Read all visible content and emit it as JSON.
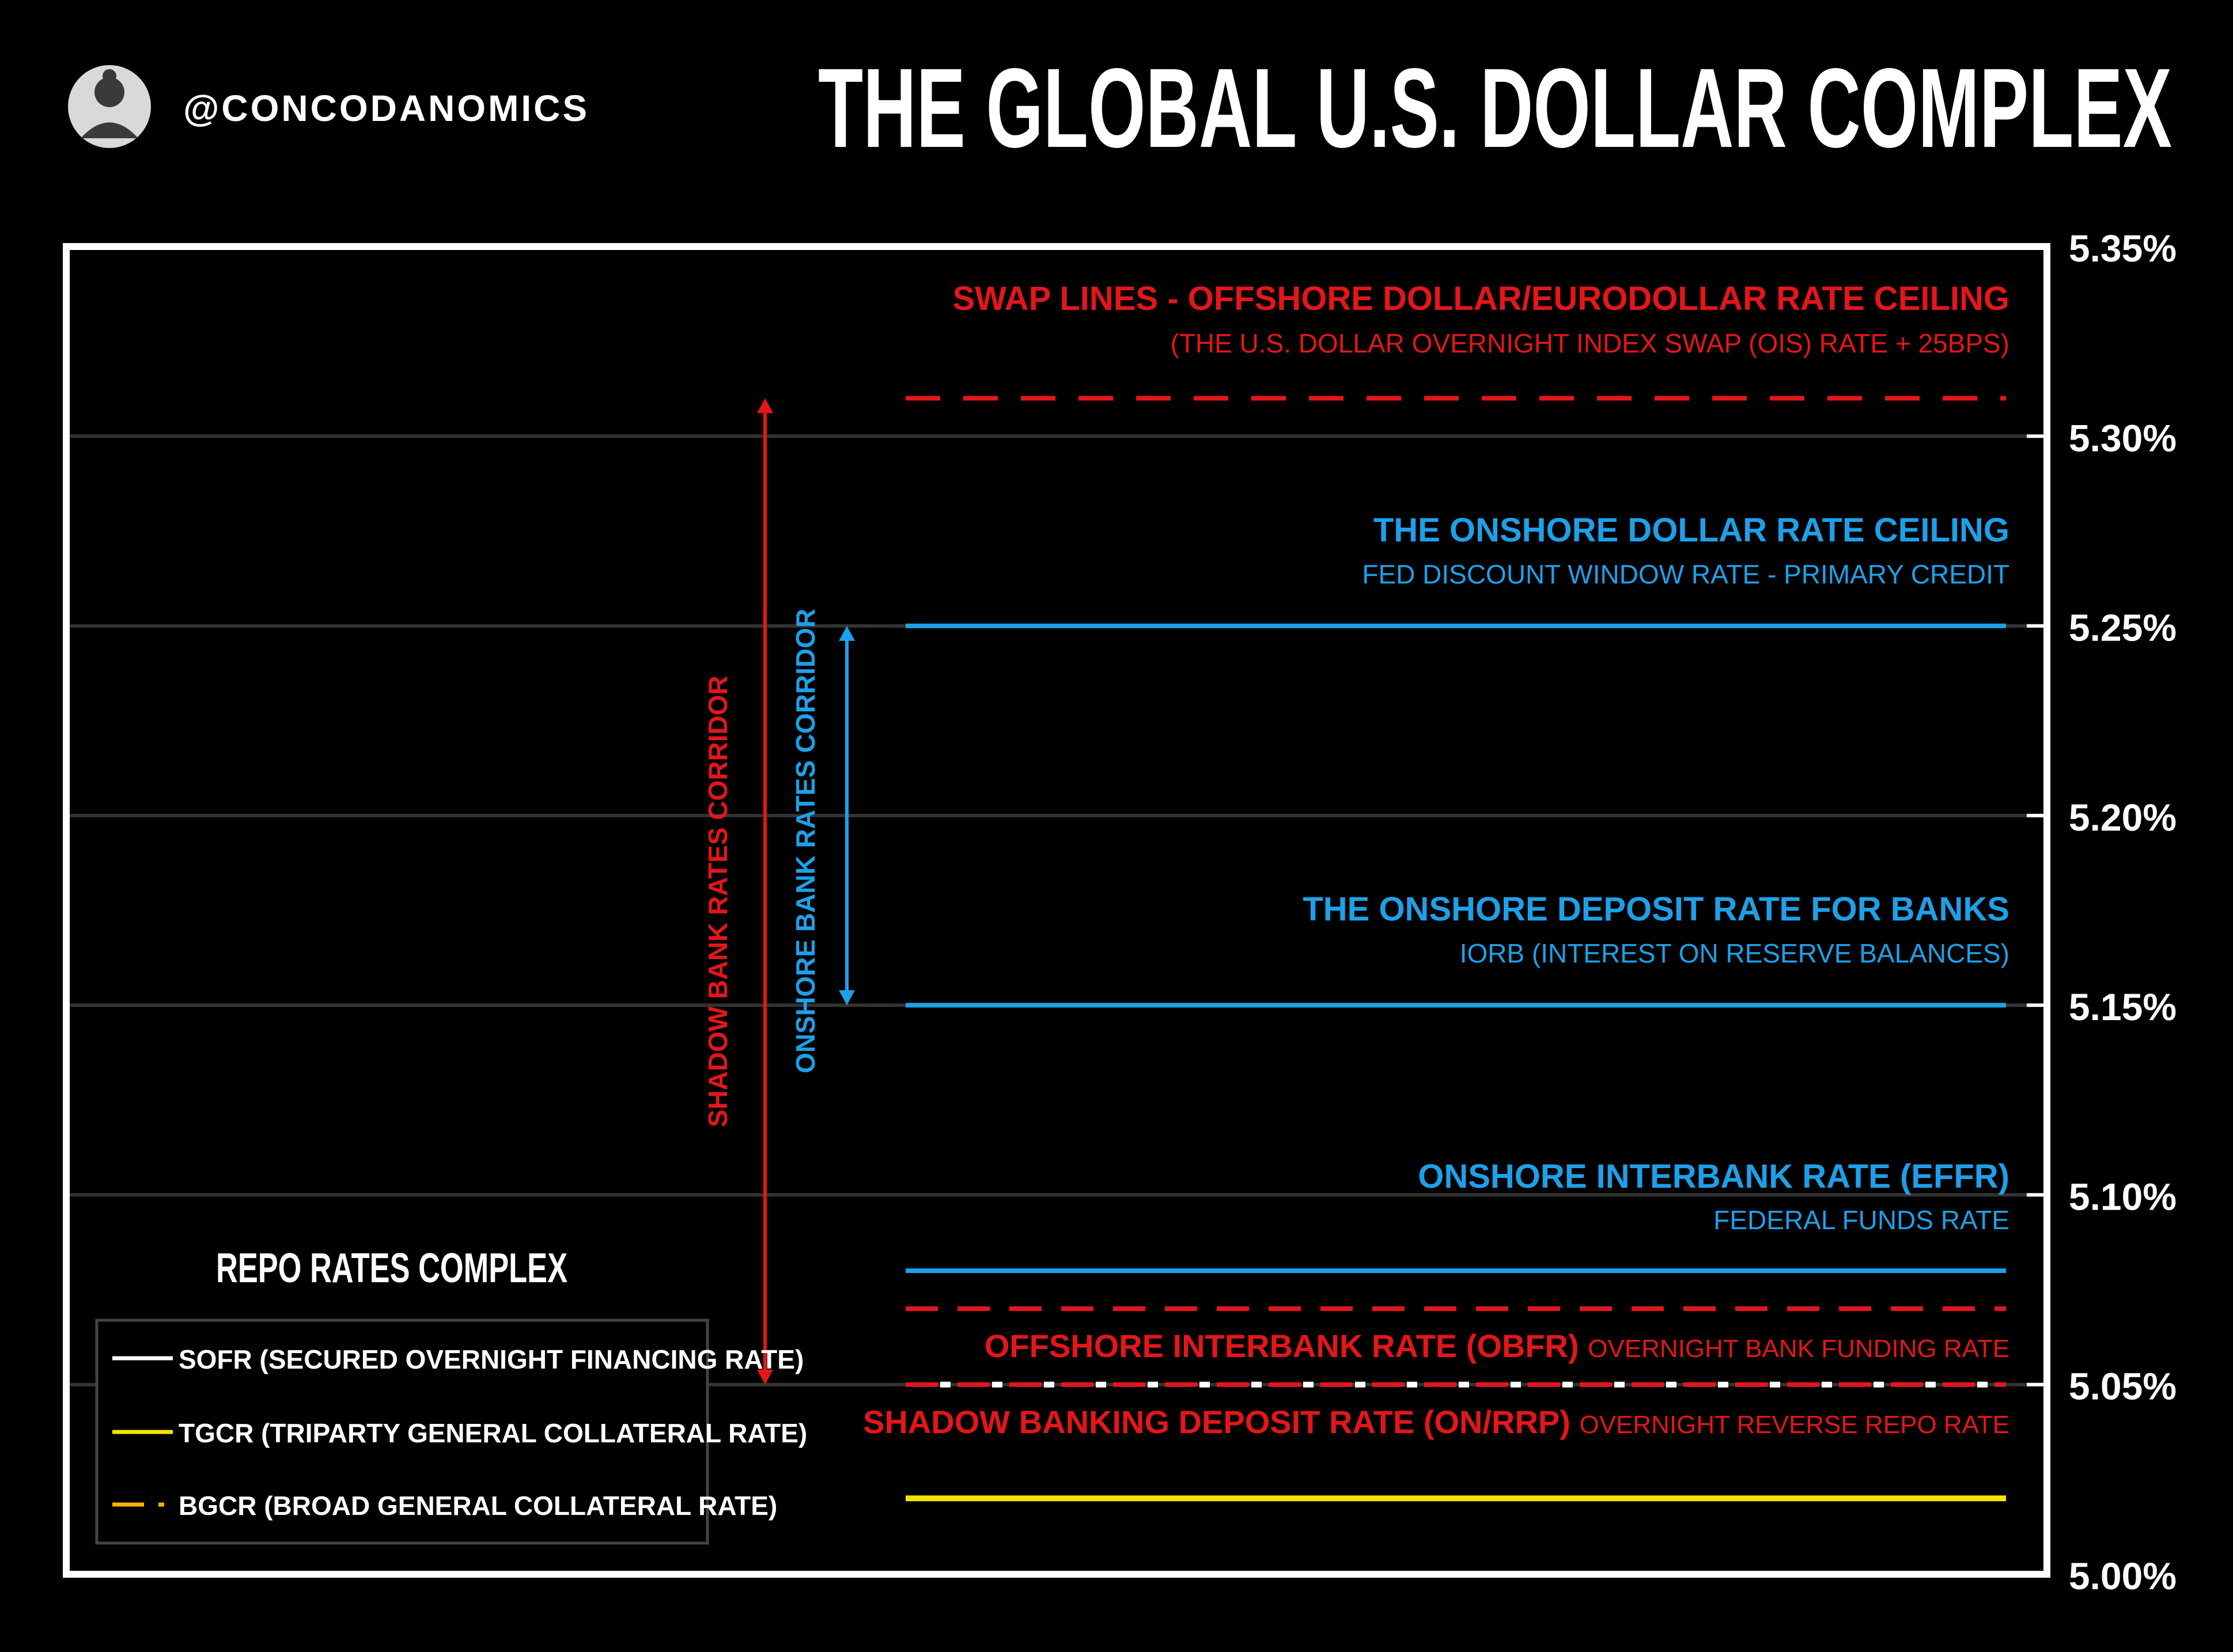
{
  "header": {
    "handle": "@CONCODANOMICS",
    "title": "THE GLOBAL U.S. DOLLAR COMPLEX",
    "avatar_icon": "person-avatar-icon"
  },
  "colors": {
    "background": "#000000",
    "frame": "#ffffff",
    "grid": "#333333",
    "red": "#e3161b",
    "blue": "#1ea0e8",
    "white": "#ffffff",
    "yellow": "#f2e600",
    "orange_yellow": "#f5b400"
  },
  "chart_data": {
    "type": "line",
    "title": "THE GLOBAL U.S. DOLLAR COMPLEX",
    "ylim": [
      5.0,
      5.35
    ],
    "y_ticks": [
      5.35,
      5.3,
      5.25,
      5.2,
      5.15,
      5.1,
      5.05,
      5.0
    ],
    "y_tick_labels": [
      "5.35%",
      "5.30%",
      "5.25%",
      "5.20%",
      "5.15%",
      "5.10%",
      "5.05%",
      "5.00%"
    ],
    "grid": true,
    "rate_lines": [
      {
        "id": "swap-lines",
        "value": 5.31,
        "color": "#e3161b",
        "style": "dashed",
        "title": "SWAP LINES - OFFSHORE DOLLAR/EURODOLLAR RATE CEILING",
        "subtitle": "(THE U.S. DOLLAR OVERNIGHT INDEX SWAP (OIS) RATE + 25BPS)"
      },
      {
        "id": "discount-window",
        "value": 5.25,
        "color": "#1ea0e8",
        "style": "solid",
        "title": "THE ONSHORE DOLLAR RATE CEILING",
        "subtitle": "FED DISCOUNT WINDOW RATE - PRIMARY CREDIT"
      },
      {
        "id": "iorb",
        "value": 5.15,
        "color": "#1ea0e8",
        "style": "solid",
        "title": "THE ONSHORE DEPOSIT RATE FOR BANKS",
        "subtitle": "IORB (INTEREST ON RESERVE BALANCES)"
      },
      {
        "id": "effr",
        "value": 5.08,
        "color": "#1ea0e8",
        "style": "solid",
        "title": "ONSHORE INTERBANK RATE (EFFR)",
        "subtitle": "FEDERAL FUNDS RATE"
      },
      {
        "id": "obfr",
        "value": 5.07,
        "color": "#e3161b",
        "style": "dashed",
        "title": "OFFSHORE INTERBANK RATE (OBFR)",
        "subtitle": "OVERNIGHT BANK FUNDING RATE"
      },
      {
        "id": "on-rrp",
        "value": 5.05,
        "color": "#e3161b",
        "style": "dashed",
        "title": "SHADOW BANKING DEPOSIT RATE (ON/RRP)",
        "subtitle": "OVERNIGHT REVERSE REPO RATE"
      },
      {
        "id": "sofr",
        "value": 5.05,
        "color": "#ffffff",
        "style": "dashed-white",
        "title": "",
        "subtitle": ""
      },
      {
        "id": "tgcr",
        "value": 5.02,
        "color": "#f2e600",
        "style": "solid",
        "title": "",
        "subtitle": ""
      },
      {
        "id": "bgcr",
        "value": 5.02,
        "color": "#f5b400",
        "style": "dashed",
        "title": "",
        "subtitle": ""
      }
    ],
    "corridors": [
      {
        "id": "shadow",
        "label": "SHADOW BANK RATES CORRIDOR",
        "from": 5.05,
        "to": 5.31,
        "color": "#e3161b"
      },
      {
        "id": "onshore",
        "label": "ONSHORE BANK RATES CORRIDOR",
        "from": 5.15,
        "to": 5.25,
        "color": "#1ea0e8"
      }
    ],
    "legend": {
      "title": "REPO RATES COMPLEX",
      "placement": "bottom-left",
      "entries": [
        {
          "label": "SOFR (SECURED OVERNIGHT FINANCING RATE)",
          "color": "#ffffff",
          "style": "solid"
        },
        {
          "label": "TGCR (TRIPARTY GENERAL COLLATERAL RATE)",
          "color": "#f2e600",
          "style": "solid"
        },
        {
          "label": "BGCR (BROAD GENERAL COLLATERAL RATE)",
          "color": "#f5b400",
          "style": "dashed"
        }
      ]
    }
  }
}
